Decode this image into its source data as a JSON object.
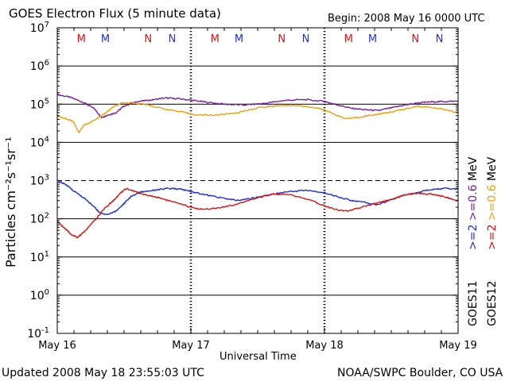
{
  "header": {
    "title": "GOES Electron Flux (5 minute data)",
    "begin": "Begin: 2008 May 16 0000 UTC"
  },
  "footer": {
    "updated": "Updated 2008 May 18 23:55:03 UTC",
    "source": "NOAA/SWPC Boulder, CO USA"
  },
  "right_labels": {
    "blue_label": ">=2",
    "red_label": ">=2",
    "purple_label": ">=0.6",
    "orange_label": ">=0.6",
    "mev_upper": "MeV",
    "mev_lower": "MeV",
    "sat_goes11": "GOES11",
    "sat_goes12": "GOES12"
  },
  "colors": {
    "purple": "#7a1fa0",
    "orange": "#e8a010",
    "blue": "#1f2fd8",
    "red": "#e01010",
    "axis": "#000000"
  },
  "chart_data": {
    "type": "line",
    "title": "GOES Electron Flux (5 minute data)",
    "xlabel": "Universal Time",
    "ylabel": "Particles cm⁻²s⁻¹sr⁻¹",
    "x_ticks": [
      "May 16",
      "May 17",
      "May 18",
      "May 19"
    ],
    "x_unit": "days since 2008 May 16 0000 UTC",
    "xlim": [
      0,
      3
    ],
    "y_scale": "log",
    "ylim": [
      0.1,
      10000000
    ],
    "y_ticks": [
      {
        "value": 0.1,
        "base": "10",
        "exp": "-1"
      },
      {
        "value": 1,
        "base": "10",
        "exp": "0"
      },
      {
        "value": 10,
        "base": "10",
        "exp": "1"
      },
      {
        "value": 100,
        "base": "10",
        "exp": "2"
      },
      {
        "value": 1000,
        "base": "10",
        "exp": "3"
      },
      {
        "value": 10000,
        "base": "10",
        "exp": "4"
      },
      {
        "value": 100000,
        "base": "10",
        "exp": "5"
      },
      {
        "value": 1000000,
        "base": "10",
        "exp": "6"
      },
      {
        "value": 10000000,
        "base": "10",
        "exp": "7"
      }
    ],
    "threshold": 1000,
    "grid": "horizontal at each decade",
    "markers": [
      {
        "label": "M",
        "x": 0.18,
        "color": "red"
      },
      {
        "label": "M",
        "x": 0.36,
        "color": "blue"
      },
      {
        "label": "N",
        "x": 0.68,
        "color": "red"
      },
      {
        "label": "N",
        "x": 0.86,
        "color": "blue"
      },
      {
        "label": "M",
        "x": 1.18,
        "color": "red"
      },
      {
        "label": "M",
        "x": 1.36,
        "color": "blue"
      },
      {
        "label": "N",
        "x": 1.68,
        "color": "red"
      },
      {
        "label": "N",
        "x": 1.86,
        "color": "blue"
      },
      {
        "label": "M",
        "x": 2.18,
        "color": "red"
      },
      {
        "label": "M",
        "x": 2.36,
        "color": "blue"
      },
      {
        "label": "N",
        "x": 2.68,
        "color": "red"
      },
      {
        "label": "N",
        "x": 2.86,
        "color": "blue"
      }
    ],
    "series": [
      {
        "name": "GOES11 >=0.6 MeV",
        "color": "purple",
        "points": [
          [
            0,
            180000
          ],
          [
            0.1,
            150000
          ],
          [
            0.2,
            110000
          ],
          [
            0.28,
            75000
          ],
          [
            0.33,
            45000
          ],
          [
            0.38,
            52000
          ],
          [
            0.44,
            60000
          ],
          [
            0.5,
            90000
          ],
          [
            0.6,
            118000
          ],
          [
            0.7,
            128000
          ],
          [
            0.8,
            145000
          ],
          [
            0.9,
            140000
          ],
          [
            1.0,
            128000
          ],
          [
            1.1,
            115000
          ],
          [
            1.25,
            100000
          ],
          [
            1.4,
            95000
          ],
          [
            1.55,
            105000
          ],
          [
            1.7,
            125000
          ],
          [
            1.85,
            132000
          ],
          [
            2.0,
            118000
          ],
          [
            2.1,
            95000
          ],
          [
            2.2,
            78000
          ],
          [
            2.3,
            72000
          ],
          [
            2.4,
            68000
          ],
          [
            2.5,
            80000
          ],
          [
            2.6,
            95000
          ],
          [
            2.7,
            108000
          ],
          [
            2.8,
            115000
          ],
          [
            2.9,
            118000
          ],
          [
            3.0,
            120000
          ]
        ]
      },
      {
        "name": "GOES12 >=0.6 MeV",
        "color": "orange",
        "points": [
          [
            0,
            50000
          ],
          [
            0.08,
            40000
          ],
          [
            0.12,
            35000
          ],
          [
            0.16,
            18000
          ],
          [
            0.2,
            28000
          ],
          [
            0.28,
            38000
          ],
          [
            0.35,
            55000
          ],
          [
            0.42,
            85000
          ],
          [
            0.48,
            105000
          ],
          [
            0.55,
            110000
          ],
          [
            0.65,
            100000
          ],
          [
            0.75,
            82000
          ],
          [
            0.9,
            65000
          ],
          [
            1.05,
            52000
          ],
          [
            1.2,
            52000
          ],
          [
            1.35,
            60000
          ],
          [
            1.5,
            80000
          ],
          [
            1.65,
            92000
          ],
          [
            1.8,
            92000
          ],
          [
            1.95,
            80000
          ],
          [
            2.05,
            60000
          ],
          [
            2.15,
            42000
          ],
          [
            2.25,
            45000
          ],
          [
            2.35,
            52000
          ],
          [
            2.45,
            58000
          ],
          [
            2.55,
            68000
          ],
          [
            2.7,
            88000
          ],
          [
            2.85,
            78000
          ],
          [
            3.0,
            60000
          ]
        ]
      },
      {
        "name": "GOES11 >=2 MeV",
        "color": "blue",
        "points": [
          [
            0,
            1000
          ],
          [
            0.06,
            800
          ],
          [
            0.12,
            550
          ],
          [
            0.2,
            350
          ],
          [
            0.28,
            200
          ],
          [
            0.32,
            140
          ],
          [
            0.38,
            130
          ],
          [
            0.44,
            160
          ],
          [
            0.5,
            250
          ],
          [
            0.55,
            380
          ],
          [
            0.62,
            500
          ],
          [
            0.72,
            560
          ],
          [
            0.82,
            620
          ],
          [
            0.92,
            600
          ],
          [
            1.0,
            520
          ],
          [
            1.1,
            430
          ],
          [
            1.25,
            340
          ],
          [
            1.35,
            300
          ],
          [
            1.45,
            340
          ],
          [
            1.55,
            400
          ],
          [
            1.7,
            500
          ],
          [
            1.85,
            560
          ],
          [
            2.0,
            480
          ],
          [
            2.1,
            380
          ],
          [
            2.2,
            300
          ],
          [
            2.3,
            270
          ],
          [
            2.4,
            230
          ],
          [
            2.5,
            320
          ],
          [
            2.6,
            420
          ],
          [
            2.7,
            500
          ],
          [
            2.8,
            580
          ],
          [
            2.9,
            620
          ],
          [
            3.0,
            600
          ]
        ]
      },
      {
        "name": "GOES12 >=2 MeV",
        "color": "red",
        "points": [
          [
            0,
            85
          ],
          [
            0.06,
            55
          ],
          [
            0.1,
            40
          ],
          [
            0.15,
            32
          ],
          [
            0.2,
            45
          ],
          [
            0.28,
            90
          ],
          [
            0.35,
            180
          ],
          [
            0.42,
            300
          ],
          [
            0.48,
            500
          ],
          [
            0.52,
            620
          ],
          [
            0.58,
            520
          ],
          [
            0.66,
            420
          ],
          [
            0.76,
            360
          ],
          [
            0.86,
            280
          ],
          [
            0.96,
            220
          ],
          [
            1.06,
            180
          ],
          [
            1.18,
            185
          ],
          [
            1.3,
            220
          ],
          [
            1.45,
            320
          ],
          [
            1.6,
            440
          ],
          [
            1.75,
            420
          ],
          [
            1.9,
            300
          ],
          [
            2.0,
            220
          ],
          [
            2.1,
            170
          ],
          [
            2.18,
            160
          ],
          [
            2.28,
            200
          ],
          [
            2.4,
            270
          ],
          [
            2.5,
            320
          ],
          [
            2.6,
            420
          ],
          [
            2.7,
            470
          ],
          [
            2.8,
            440
          ],
          [
            2.9,
            380
          ],
          [
            3.0,
            290
          ]
        ]
      }
    ]
  }
}
